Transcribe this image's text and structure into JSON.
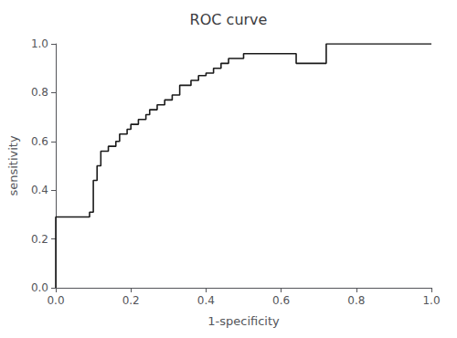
{
  "chart_data": {
    "type": "line",
    "title": "ROC curve",
    "xlabel": "1-specificity",
    "ylabel": "sensitivity",
    "xlim": [
      0.0,
      1.0
    ],
    "ylim": [
      0.0,
      1.0
    ],
    "xticks": [
      {
        "value": 0.0,
        "label": "0.0"
      },
      0.2,
      0.4,
      0.6,
      0.8,
      {
        "value": 1.0,
        "label": "1.0"
      }
    ],
    "yticks": [
      {
        "value": 0.0,
        "label": "0.0"
      },
      0.2,
      0.4,
      0.6,
      0.8,
      {
        "value": 1.0,
        "label": "1.0"
      }
    ],
    "grid": false,
    "color": "#1a1a1a",
    "x": [
      0.0,
      0.0,
      0.09,
      0.09,
      0.1,
      0.1,
      0.11,
      0.11,
      0.12,
      0.12,
      0.14,
      0.14,
      0.16,
      0.16,
      0.17,
      0.17,
      0.19,
      0.19,
      0.2,
      0.2,
      0.22,
      0.22,
      0.24,
      0.24,
      0.25,
      0.25,
      0.27,
      0.27,
      0.29,
      0.29,
      0.31,
      0.31,
      0.33,
      0.33,
      0.36,
      0.36,
      0.38,
      0.38,
      0.4,
      0.4,
      0.42,
      0.42,
      0.44,
      0.44,
      0.46,
      0.46,
      0.5,
      0.5,
      0.64,
      0.64,
      0.72,
      0.72,
      1.0
    ],
    "values": [
      0.0,
      0.29,
      0.29,
      0.31,
      0.31,
      0.44,
      0.44,
      0.5,
      0.5,
      0.56,
      0.56,
      0.58,
      0.58,
      0.6,
      0.6,
      0.63,
      0.63,
      0.65,
      0.65,
      0.67,
      0.67,
      0.69,
      0.69,
      0.71,
      0.71,
      0.73,
      0.73,
      0.75,
      0.75,
      0.77,
      0.77,
      0.79,
      0.79,
      0.83,
      0.83,
      0.85,
      0.85,
      0.87,
      0.87,
      0.88,
      0.88,
      0.9,
      0.9,
      0.92,
      0.92,
      0.94,
      0.94,
      0.96,
      0.96,
      0.92,
      0.92,
      1.0,
      1.0
    ]
  }
}
